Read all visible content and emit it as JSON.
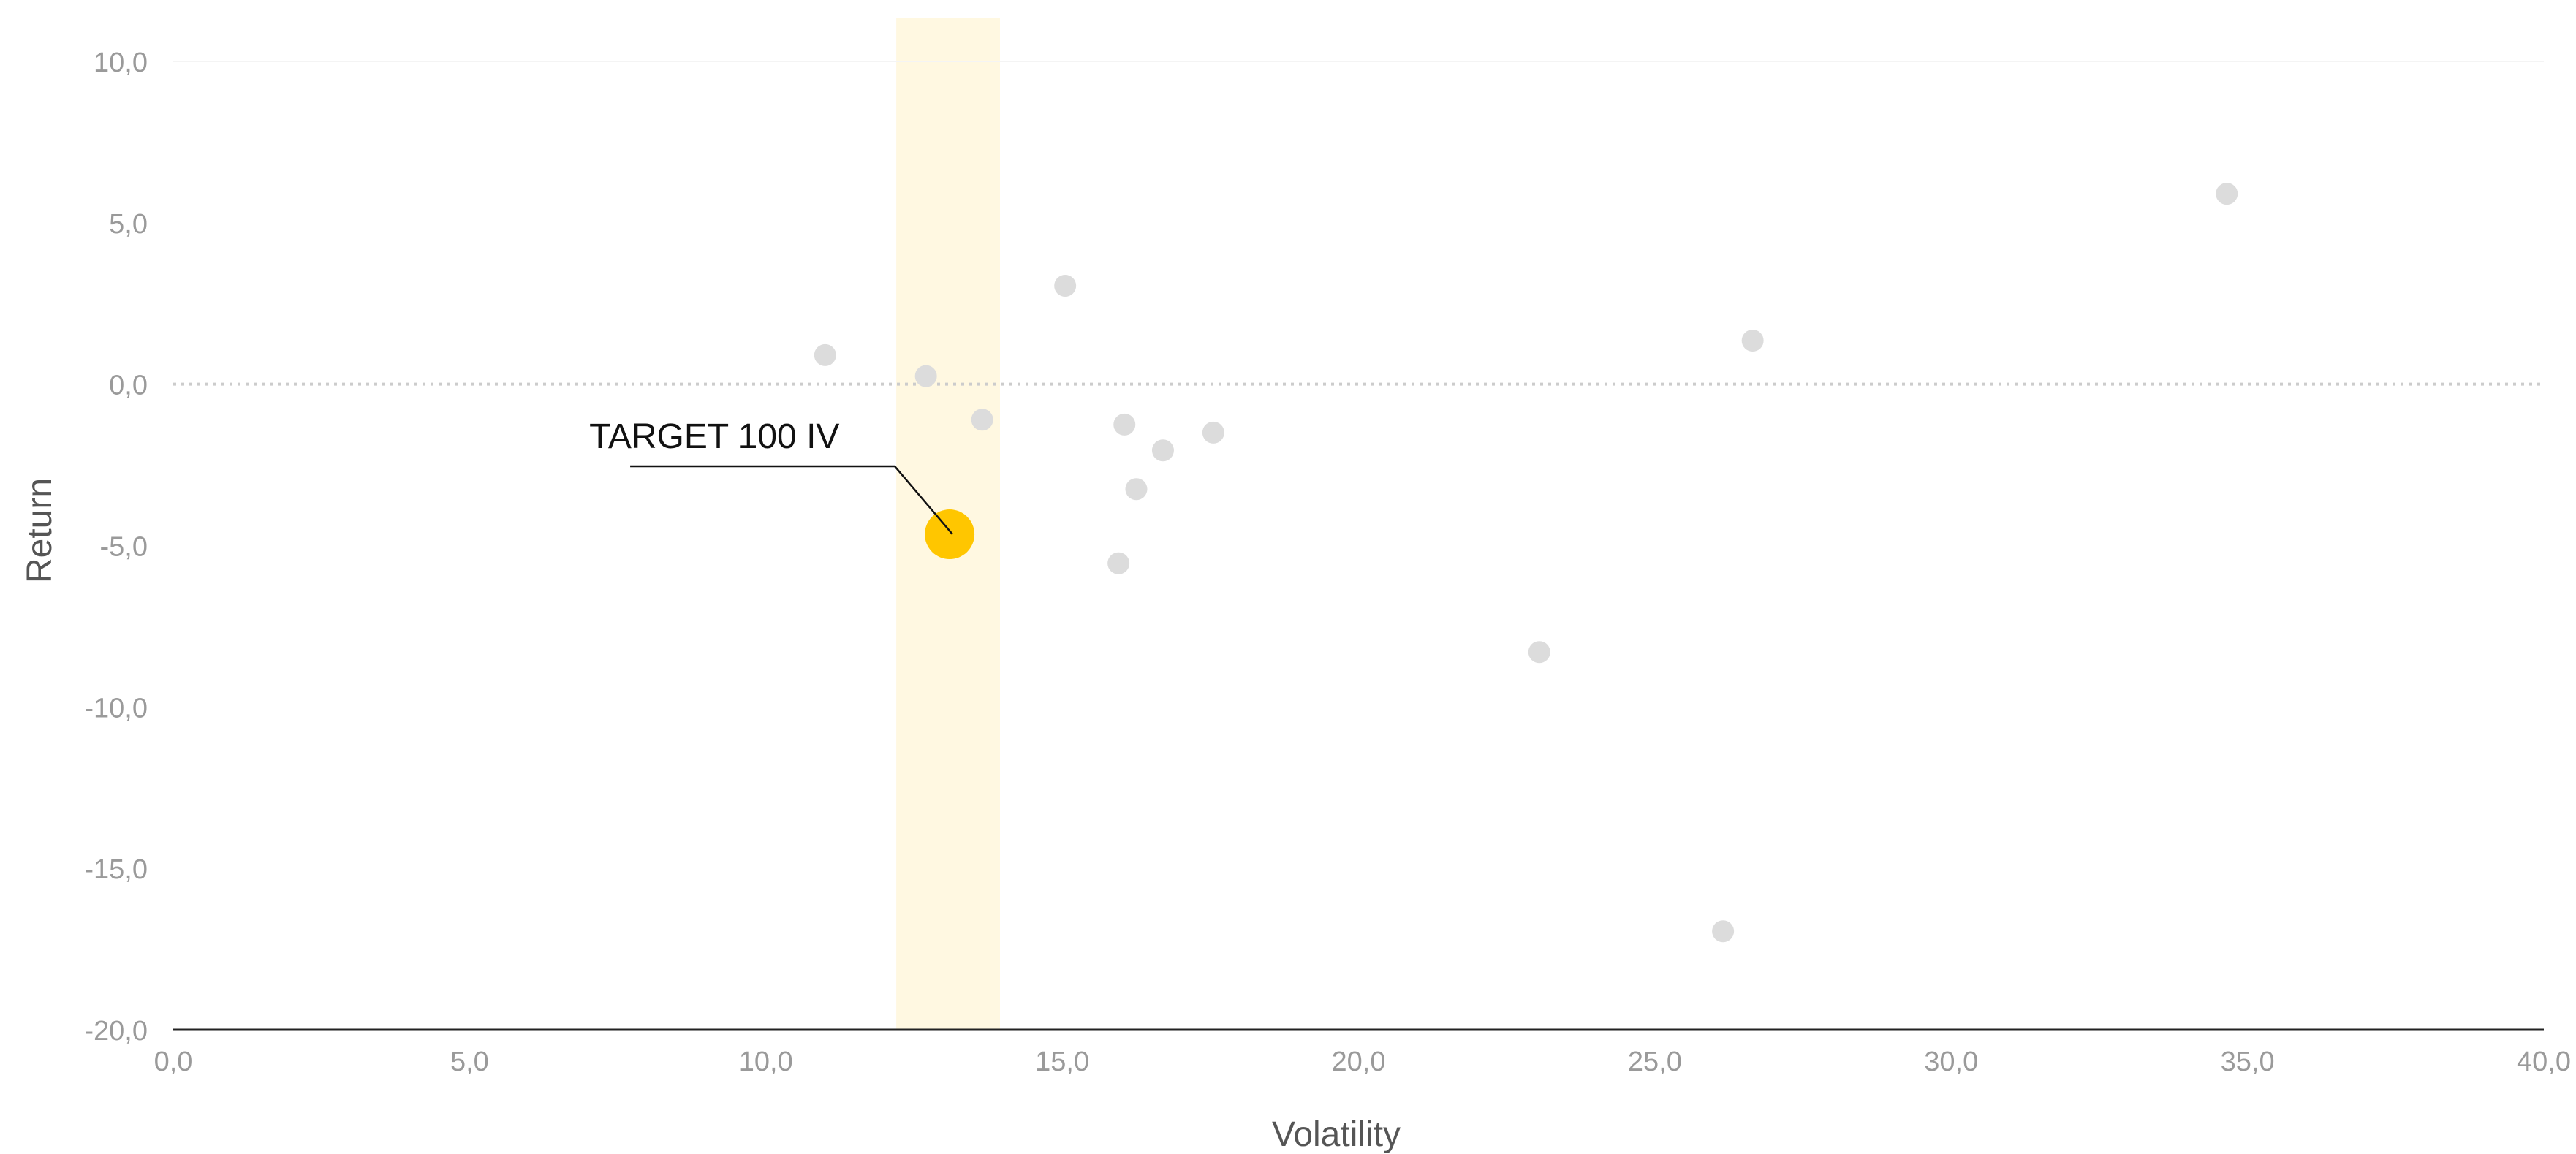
{
  "chart_data": {
    "type": "scatter",
    "title": "",
    "xlabel": "Volatility",
    "ylabel": "Return",
    "xlim": [
      0,
      40
    ],
    "ylim": [
      -20,
      10
    ],
    "x_ticks": [
      "0,0",
      "5,0",
      "10,0",
      "15,0",
      "20,0",
      "25,0",
      "30,0",
      "35,0",
      "40,0"
    ],
    "y_ticks": [
      "10,0",
      "5,0",
      "0,0",
      "-5,0",
      "-10,0",
      "-15,0",
      "-20,0"
    ],
    "grid": false,
    "highlight_band": {
      "x_from": 12.2,
      "x_to": 13.95,
      "color": "#fff8e1"
    },
    "zero_line": {
      "y": 0,
      "style": "dotted"
    },
    "points": [
      {
        "x": 11.0,
        "y": 0.9
      },
      {
        "x": 12.7,
        "y": 0.25
      },
      {
        "x": 13.65,
        "y": -1.1
      },
      {
        "x": 15.05,
        "y": 3.05
      },
      {
        "x": 16.05,
        "y": -1.25
      },
      {
        "x": 16.7,
        "y": -2.05
      },
      {
        "x": 17.55,
        "y": -1.5
      },
      {
        "x": 16.25,
        "y": -3.25
      },
      {
        "x": 15.95,
        "y": -5.55
      },
      {
        "x": 23.05,
        "y": -8.3
      },
      {
        "x": 26.65,
        "y": 1.35
      },
      {
        "x": 26.15,
        "y": -16.95
      },
      {
        "x": 34.65,
        "y": 5.9
      }
    ],
    "highlight_point": {
      "x": 13.1,
      "y": -4.65,
      "label": "TARGET 100 IV",
      "color": "#ffc600"
    },
    "colors": {
      "point": "#dcdcdc",
      "axis": "#222222",
      "zero_line": "#cccccc"
    }
  }
}
